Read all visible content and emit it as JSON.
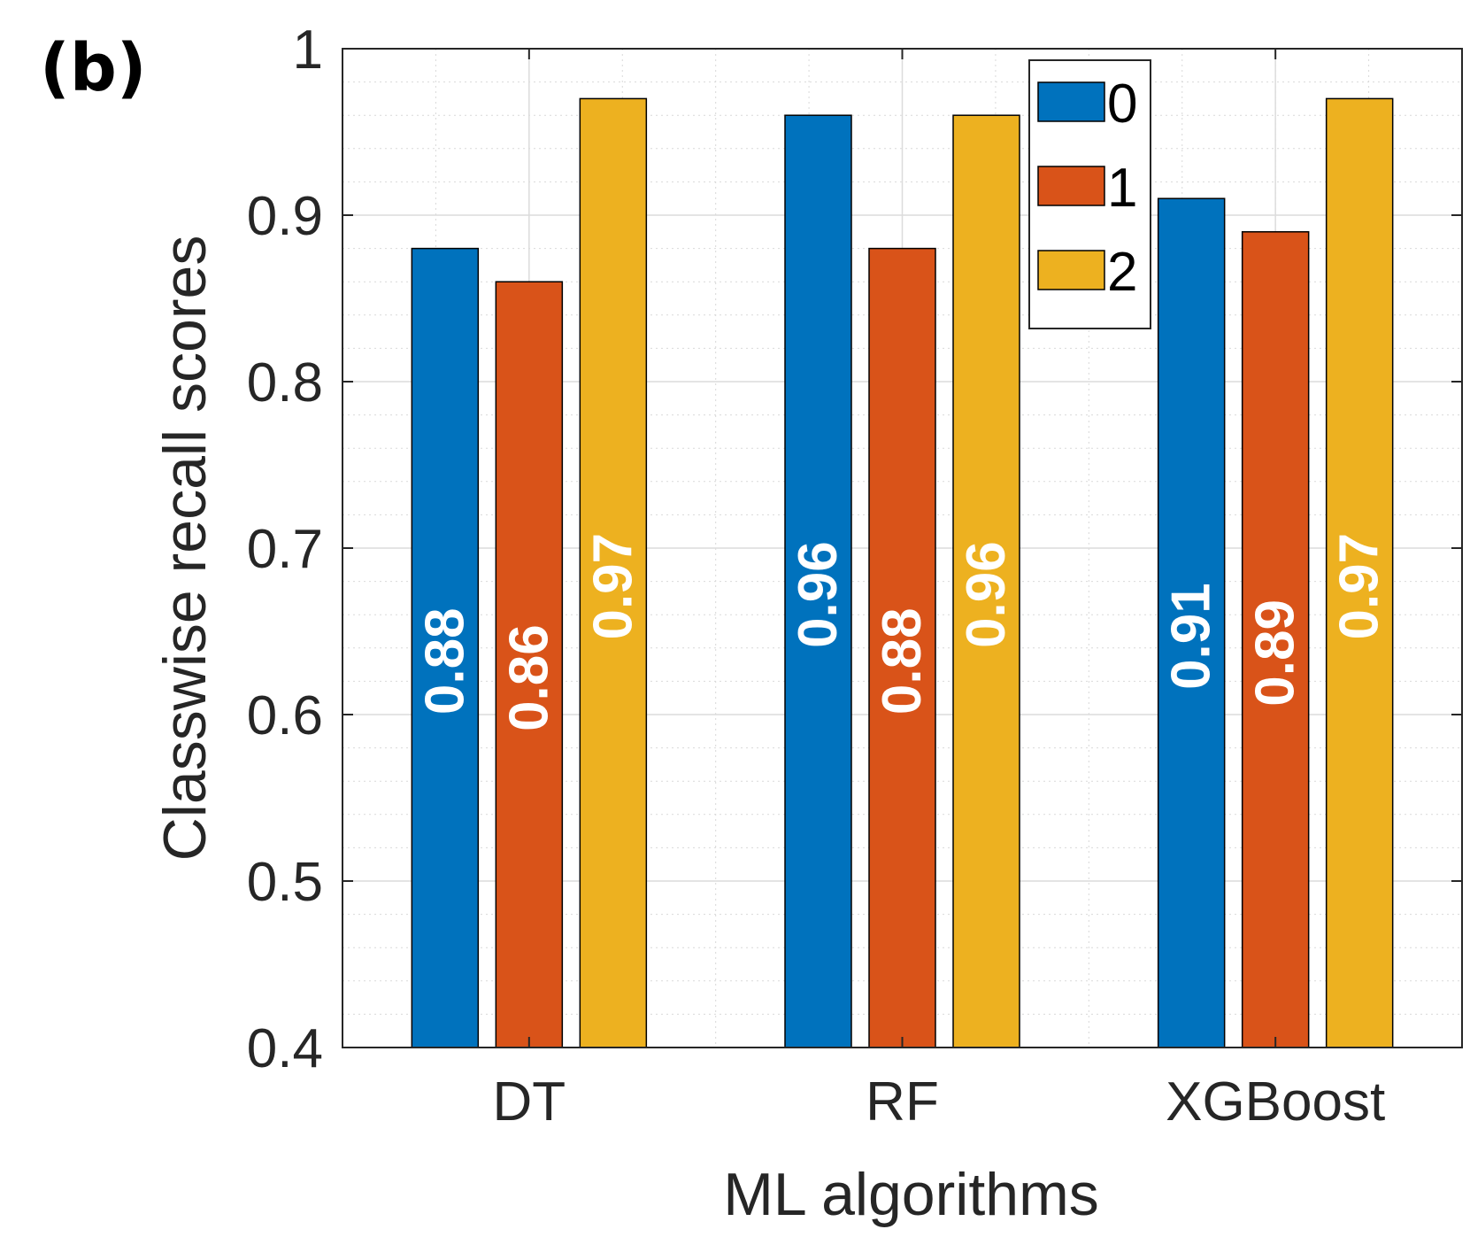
{
  "panel_label": "(b)",
  "chart_data": {
    "type": "bar",
    "title": "",
    "xlabel": "ML algorithms",
    "ylabel": "Classwise recall scores",
    "categories": [
      "DT",
      "RF",
      "XGBoost"
    ],
    "ylim": [
      0.4,
      1.0
    ],
    "yticks": [
      0.4,
      0.5,
      0.6,
      0.7,
      0.8,
      0.9,
      1.0
    ],
    "ytick_labels": [
      "0.4",
      "0.5",
      "0.6",
      "0.7",
      "0.8",
      "0.9",
      "1"
    ],
    "grid": true,
    "minor_grid": true,
    "legend_position": "top-right",
    "series": [
      {
        "name": "0",
        "color": "#0072BD",
        "values": [
          0.88,
          0.96,
          0.91
        ],
        "labels": [
          "0.88",
          "0.96",
          "0.91"
        ]
      },
      {
        "name": "1",
        "color": "#D95319",
        "values": [
          0.86,
          0.88,
          0.89
        ],
        "labels": [
          "0.86",
          "0.88",
          "0.89"
        ]
      },
      {
        "name": "2",
        "color": "#EDB120",
        "values": [
          0.97,
          0.96,
          0.97
        ],
        "labels": [
          "0.97",
          "0.96",
          "0.97"
        ]
      }
    ]
  }
}
